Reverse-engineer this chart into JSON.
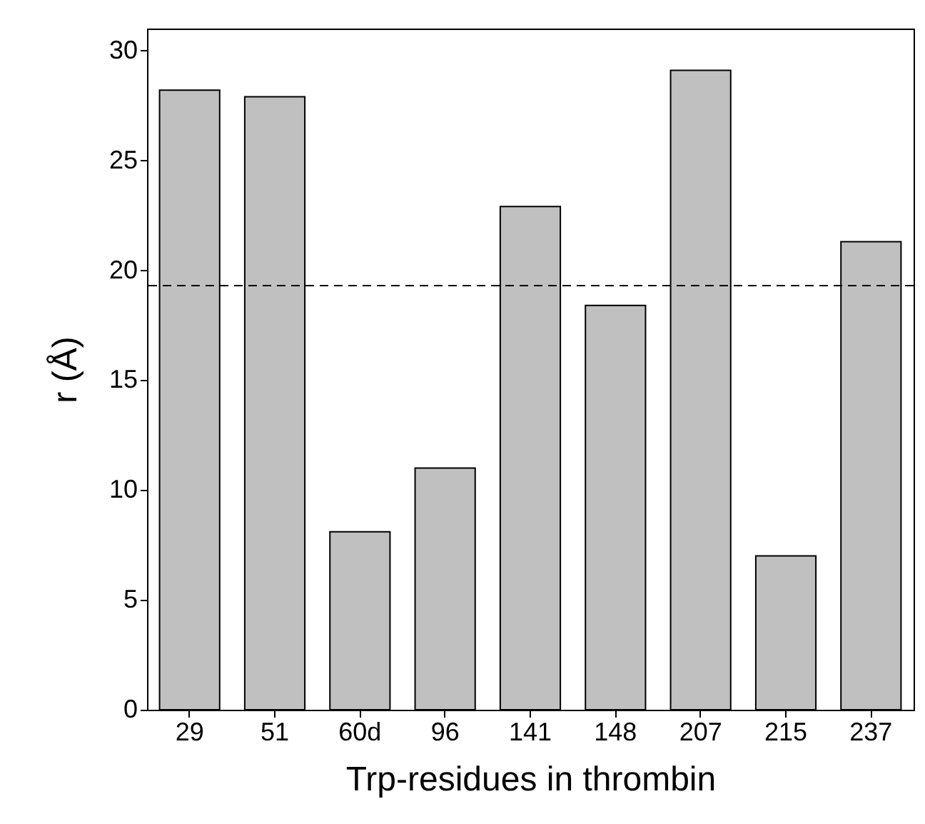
{
  "chart_data": {
    "type": "bar",
    "xlabel": "Trp-residues in thrombin",
    "ylabel": "r  (Å)",
    "categories": [
      "29",
      "51",
      "60d",
      "96",
      "141",
      "148",
      "207",
      "215",
      "237"
    ],
    "values": [
      28.2,
      27.9,
      8.1,
      11.0,
      22.9,
      18.4,
      29.1,
      7.0,
      21.3
    ],
    "color": "#c0c0c0",
    "ylim": [
      0,
      31
    ],
    "yticks": [
      0,
      5,
      10,
      15,
      20,
      25,
      30
    ],
    "grid": false,
    "ref_lines": [
      {
        "axis": "y",
        "value": 19.3,
        "line_style": "dashed",
        "color": "#000000"
      }
    ]
  }
}
